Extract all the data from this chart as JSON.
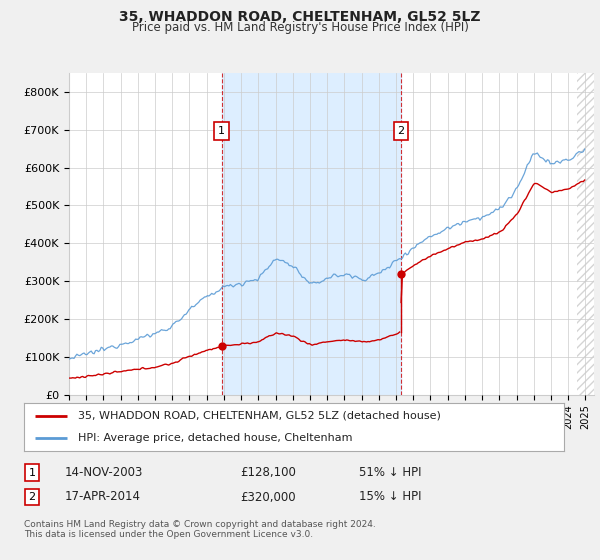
{
  "title": "35, WHADDON ROAD, CHELTENHAM, GL52 5LZ",
  "subtitle": "Price paid vs. HM Land Registry's House Price Index (HPI)",
  "ylabel_ticks": [
    "£0",
    "£100K",
    "£200K",
    "£300K",
    "£400K",
    "£500K",
    "£600K",
    "£700K",
    "£800K"
  ],
  "ytick_vals": [
    0,
    100000,
    200000,
    300000,
    400000,
    500000,
    600000,
    700000,
    800000
  ],
  "ylim": [
    0,
    850000
  ],
  "xlim_start": 1995.0,
  "xlim_end": 2025.5,
  "t1": 2003.87,
  "t2": 2014.29,
  "p1": 128100,
  "p2": 320000,
  "marker1_label": "1",
  "marker2_label": "2",
  "legend_line1": "35, WHADDON ROAD, CHELTENHAM, GL52 5LZ (detached house)",
  "legend_line2": "HPI: Average price, detached house, Cheltenham",
  "table_row1": [
    "1",
    "14-NOV-2003",
    "£128,100",
    "51% ↓ HPI"
  ],
  "table_row2": [
    "2",
    "17-APR-2014",
    "£320,000",
    "15% ↓ HPI"
  ],
  "footer": "Contains HM Land Registry data © Crown copyright and database right 2024.\nThis data is licensed under the Open Government Licence v3.0.",
  "red_color": "#cc0000",
  "blue_color": "#5b9bd5",
  "vline_color": "#cc0000",
  "shaded_color": "#ddeeff",
  "bg_color": "#f0f0f0",
  "plot_bg": "#ffffff",
  "grid_color": "#cccccc",
  "hatch_color": "#aaaaaa"
}
